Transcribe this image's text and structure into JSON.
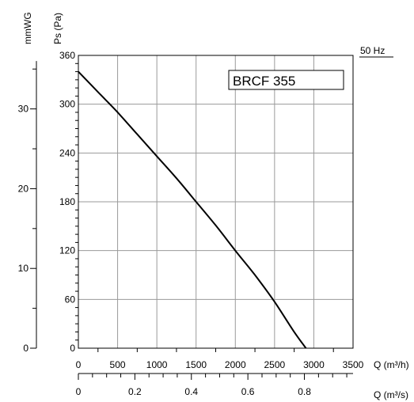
{
  "chart_data": {
    "type": "line",
    "frequency": "50 Hz",
    "model_label": "BRCF 355",
    "left_axis": {
      "ps_label": "Ps (Pa)",
      "mmwg_label": "mmWG",
      "ps_ticks": [
        0,
        60,
        120,
        180,
        240,
        300,
        360
      ],
      "ps_range": [
        0,
        360
      ],
      "mmwg_ticks": [
        0,
        10,
        20,
        30
      ]
    },
    "bottom_axis": {
      "q_m3h_label": "Q (m³/h)",
      "q_m3h_ticks": [
        0,
        500,
        1000,
        1500,
        2000,
        2500,
        3000,
        3500
      ],
      "q_m3h_range": [
        0,
        3500
      ],
      "q_m3s_label": "Q (m³/s)",
      "q_m3s_ticks": [
        0,
        0.2,
        0.4,
        0.6,
        0.8
      ]
    },
    "grid": true,
    "series": [
      {
        "x": [
          0,
          250,
          500,
          750,
          1000,
          1250,
          1500,
          1750,
          2000,
          2250,
          2500,
          2750,
          2900
        ],
        "y": [
          340,
          315,
          290,
          263,
          236,
          209,
          180,
          151,
          120,
          90,
          57,
          20,
          0
        ]
      }
    ]
  }
}
